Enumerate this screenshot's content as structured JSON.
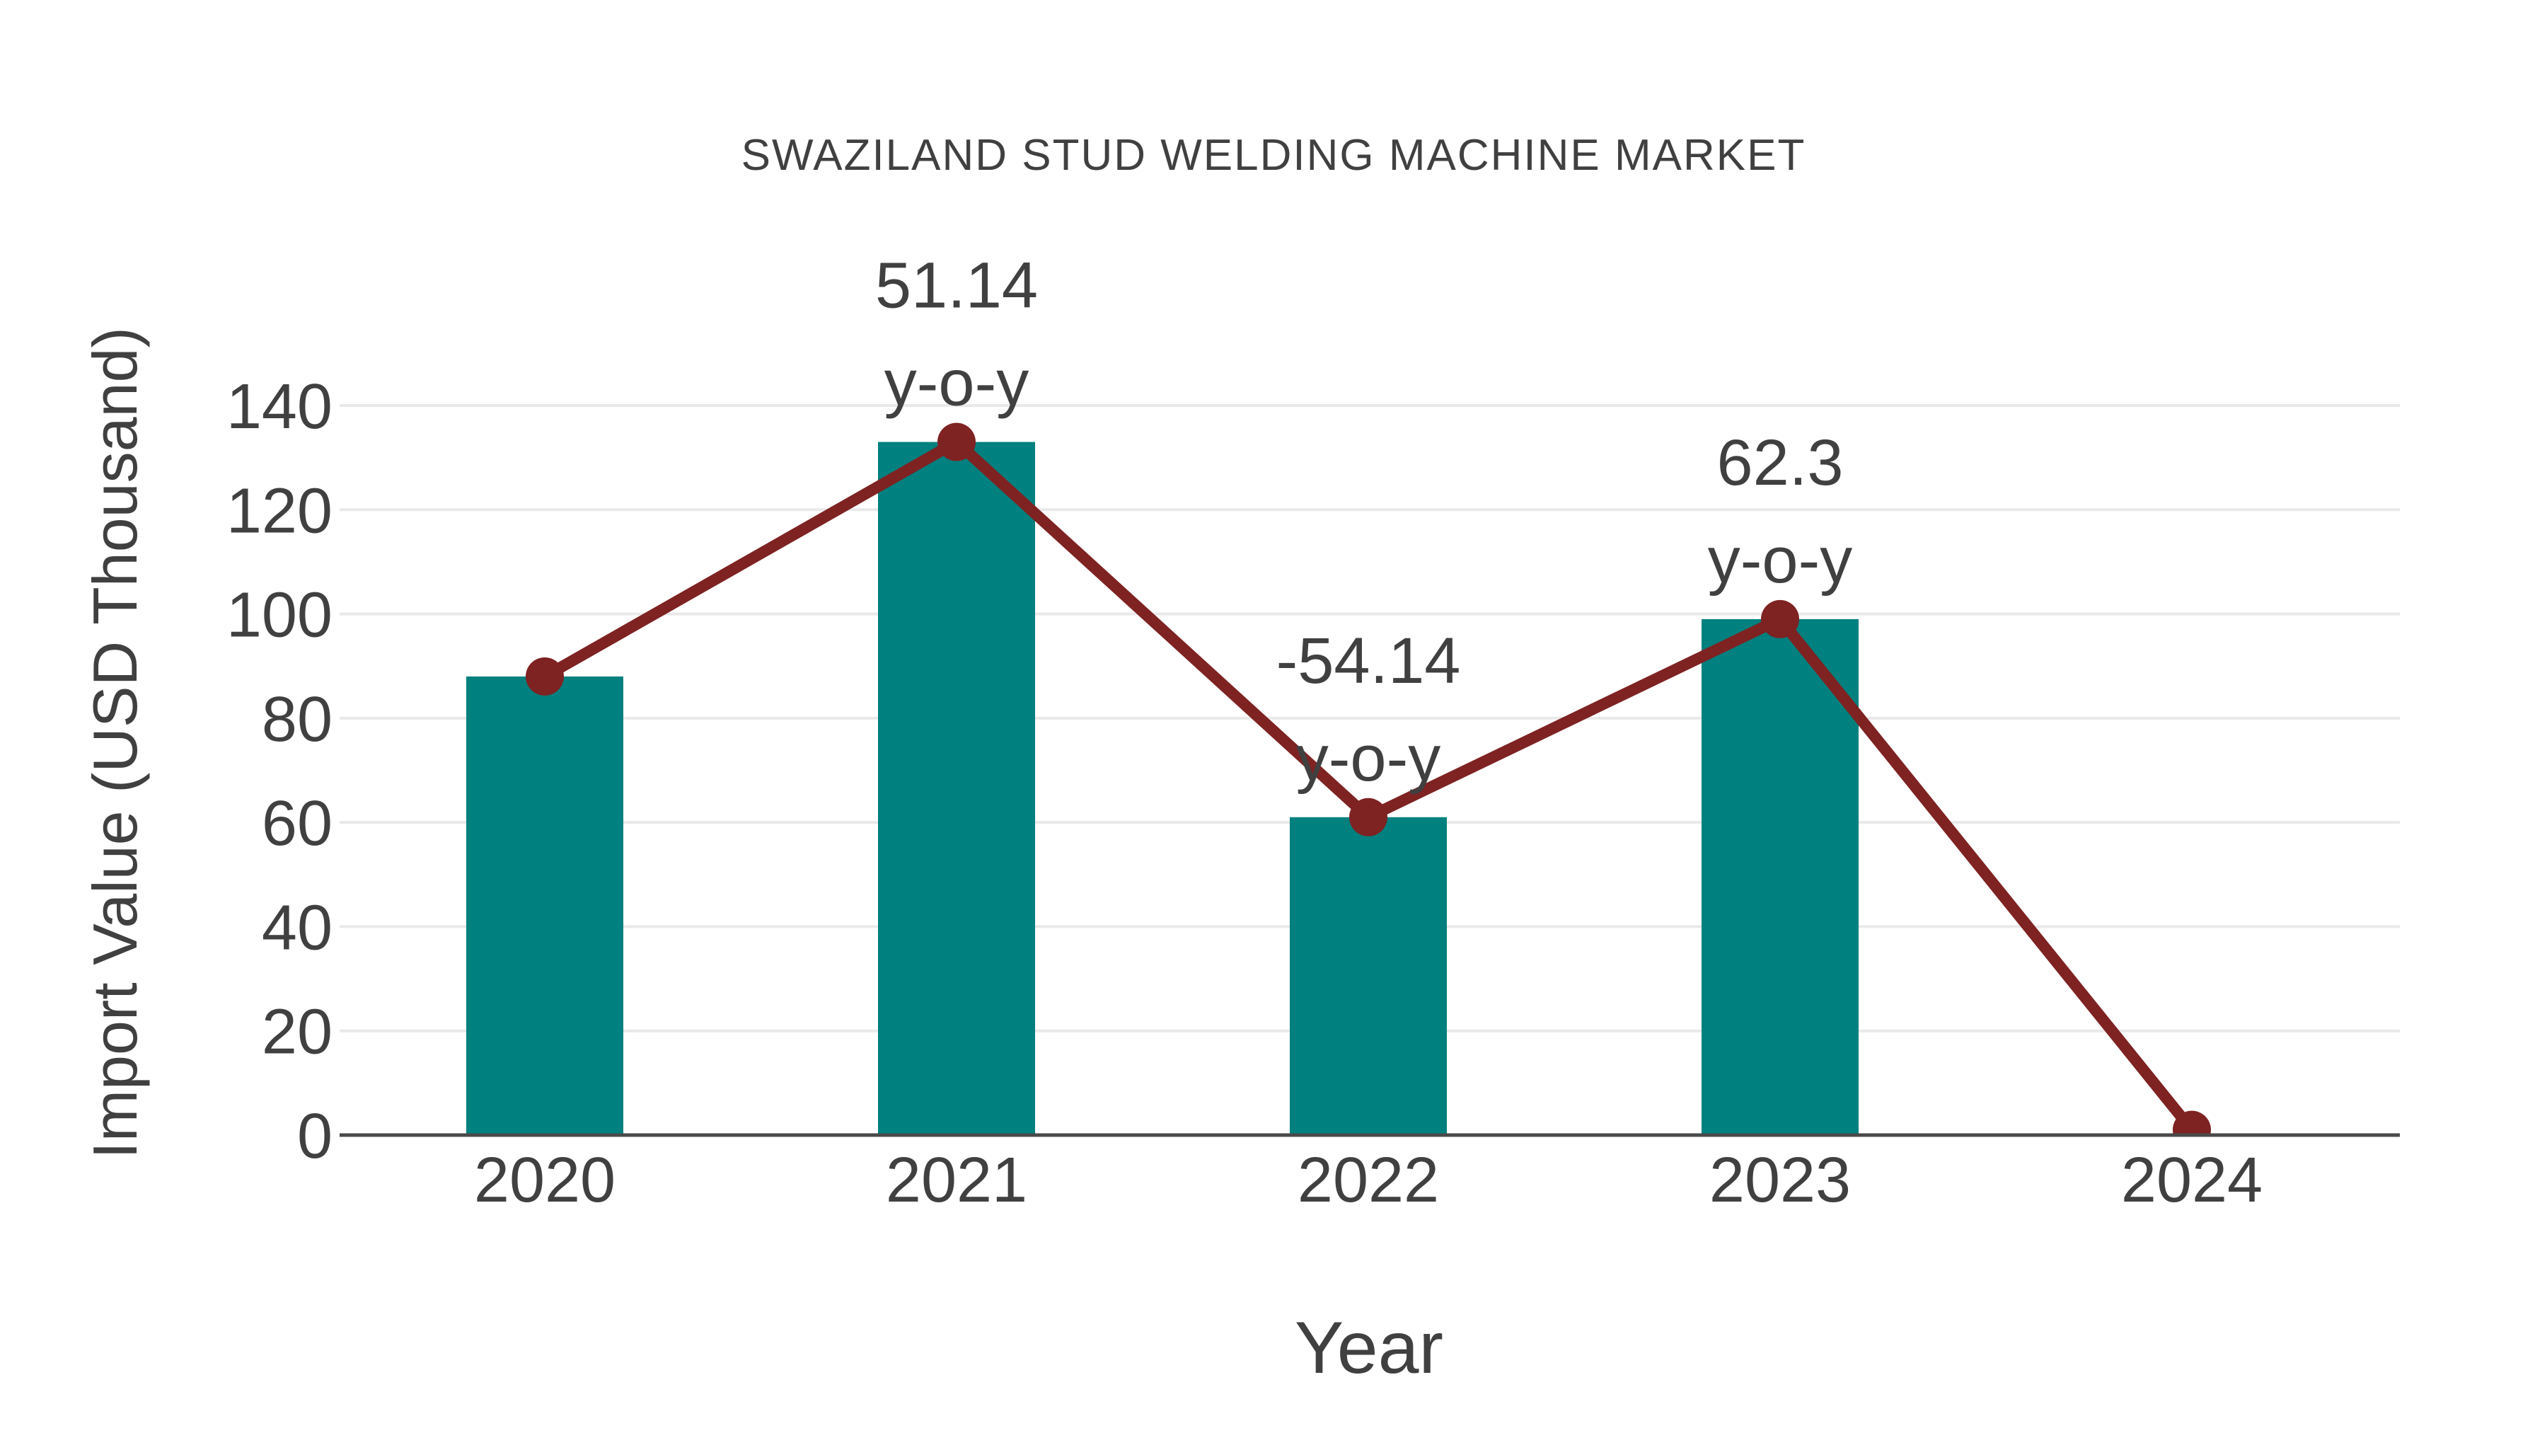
{
  "chart_data": {
    "type": "bar",
    "title": "SWAZILAND STUD WELDING MACHINE MARKET",
    "xlabel": "Year",
    "ylabel": "Import Value (USD Thousand)",
    "categories": [
      "2020",
      "2021",
      "2022",
      "2023",
      "2024"
    ],
    "series": [
      {
        "name": "Import Value bars",
        "type": "bar",
        "values": [
          88,
          133,
          61,
          99,
          0
        ]
      },
      {
        "name": "Import Value trend line",
        "type": "line",
        "values": [
          88,
          133,
          61,
          99,
          1
        ]
      }
    ],
    "annotations": [
      {
        "category": "2021",
        "value_label": "51.14",
        "suffix_label": "y-o-y"
      },
      {
        "category": "2022",
        "value_label": "-54.14",
        "suffix_label": "y-o-y"
      },
      {
        "category": "2023",
        "value_label": "62.3",
        "suffix_label": "y-o-y"
      }
    ],
    "ylim": [
      0,
      140
    ],
    "yticks": [
      0,
      20,
      40,
      60,
      80,
      100,
      120,
      140
    ],
    "grid": "horizontal",
    "legend": "none",
    "colors": {
      "bar": "#00807e",
      "line": "#7e2222",
      "text": "#404040",
      "grid": "#e9e9e9",
      "axis": "#4a4a4a"
    }
  }
}
